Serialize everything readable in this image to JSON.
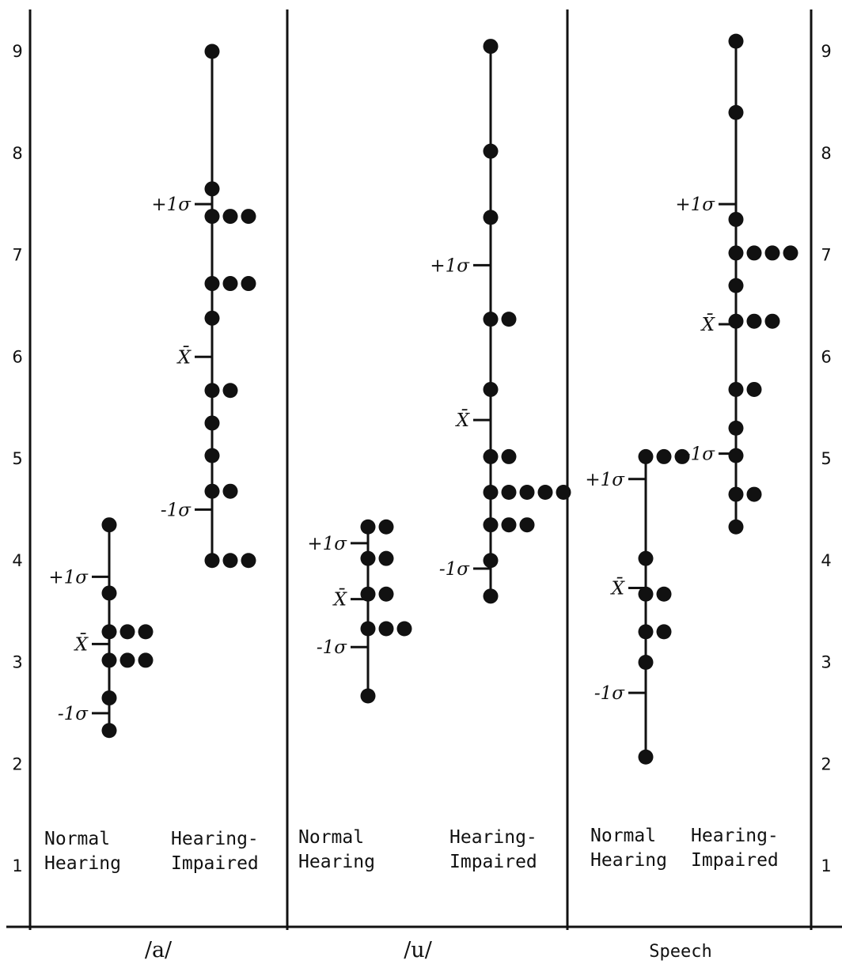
{
  "chart_data": {
    "type": "scatter",
    "title": "",
    "y_ticks": [
      1,
      2,
      3,
      4,
      5,
      6,
      7,
      8,
      9
    ],
    "y_range": [
      1,
      9.3
    ],
    "panels": [
      {
        "label": "/a/",
        "groups": [
          {
            "label": [
              "Normal",
              "Hearing"
            ],
            "center_plus_sd": 3.84,
            "mean": 3.18,
            "center_minus_sd": 2.5,
            "rows": [
              {
                "value": 4.35,
                "count": 1
              },
              {
                "value": 3.68,
                "count": 1
              },
              {
                "value": 3.3,
                "count": 3
              },
              {
                "value": 3.02,
                "count": 3
              },
              {
                "value": 2.65,
                "count": 1
              },
              {
                "value": 2.33,
                "count": 1
              }
            ]
          },
          {
            "label": [
              "Hearing-",
              "Impaired"
            ],
            "center_plus_sd": 7.5,
            "mean": 6.0,
            "center_minus_sd": 4.5,
            "rows": [
              {
                "value": 9.0,
                "count": 1
              },
              {
                "value": 7.65,
                "count": 1
              },
              {
                "value": 7.38,
                "count": 3
              },
              {
                "value": 6.72,
                "count": 3
              },
              {
                "value": 6.38,
                "count": 1
              },
              {
                "value": 5.67,
                "count": 2
              },
              {
                "value": 5.35,
                "count": 1
              },
              {
                "value": 5.03,
                "count": 1
              },
              {
                "value": 4.68,
                "count": 2
              },
              {
                "value": 4.0,
                "count": 3
              }
            ]
          }
        ]
      },
      {
        "label": "/u/",
        "groups": [
          {
            "label": [
              "Normal",
              "Hearing"
            ],
            "center_plus_sd": 4.17,
            "mean": 3.62,
            "center_minus_sd": 3.15,
            "rows": [
              {
                "value": 4.33,
                "count": 2
              },
              {
                "value": 4.02,
                "count": 2
              },
              {
                "value": 3.67,
                "count": 2
              },
              {
                "value": 3.33,
                "count": 3
              },
              {
                "value": 2.67,
                "count": 1
              }
            ]
          },
          {
            "label": [
              "Hearing-",
              "Impaired"
            ],
            "center_plus_sd": 6.9,
            "mean": 5.38,
            "center_minus_sd": 3.92,
            "rows": [
              {
                "value": 9.05,
                "count": 1
              },
              {
                "value": 8.02,
                "count": 1
              },
              {
                "value": 7.37,
                "count": 1
              },
              {
                "value": 6.37,
                "count": 2
              },
              {
                "value": 5.68,
                "count": 1
              },
              {
                "value": 5.02,
                "count": 2
              },
              {
                "value": 4.67,
                "count": 5
              },
              {
                "value": 4.35,
                "count": 3
              },
              {
                "value": 4.0,
                "count": 1
              },
              {
                "value": 3.65,
                "count": 1
              }
            ]
          }
        ]
      },
      {
        "label": "Speech",
        "groups": [
          {
            "label": [
              "Normal",
              "Hearing"
            ],
            "center_plus_sd": 4.8,
            "mean": 3.73,
            "center_minus_sd": 2.7,
            "rows": [
              {
                "value": 5.02,
                "count": 3
              },
              {
                "value": 4.02,
                "count": 1
              },
              {
                "value": 3.67,
                "count": 2
              },
              {
                "value": 3.3,
                "count": 2
              },
              {
                "value": 3.0,
                "count": 1
              },
              {
                "value": 2.07,
                "count": 1
              }
            ]
          },
          {
            "label": [
              "Hearing-",
              "Impaired"
            ],
            "center_plus_sd": 7.5,
            "mean": 6.32,
            "center_minus_sd": 5.05,
            "rows": [
              {
                "value": 9.1,
                "count": 1
              },
              {
                "value": 8.4,
                "count": 1
              },
              {
                "value": 7.35,
                "count": 1
              },
              {
                "value": 7.02,
                "count": 4
              },
              {
                "value": 6.7,
                "count": 1
              },
              {
                "value": 6.35,
                "count": 3
              },
              {
                "value": 5.68,
                "count": 2
              },
              {
                "value": 5.3,
                "count": 1
              },
              {
                "value": 5.03,
                "count": 1
              },
              {
                "value": 4.65,
                "count": 2
              },
              {
                "value": 4.33,
                "count": 1
              }
            ]
          }
        ]
      }
    ],
    "stat_labels": {
      "plus_sd": "+1σ",
      "mean": "X̄",
      "minus_sd": "-1σ"
    }
  }
}
